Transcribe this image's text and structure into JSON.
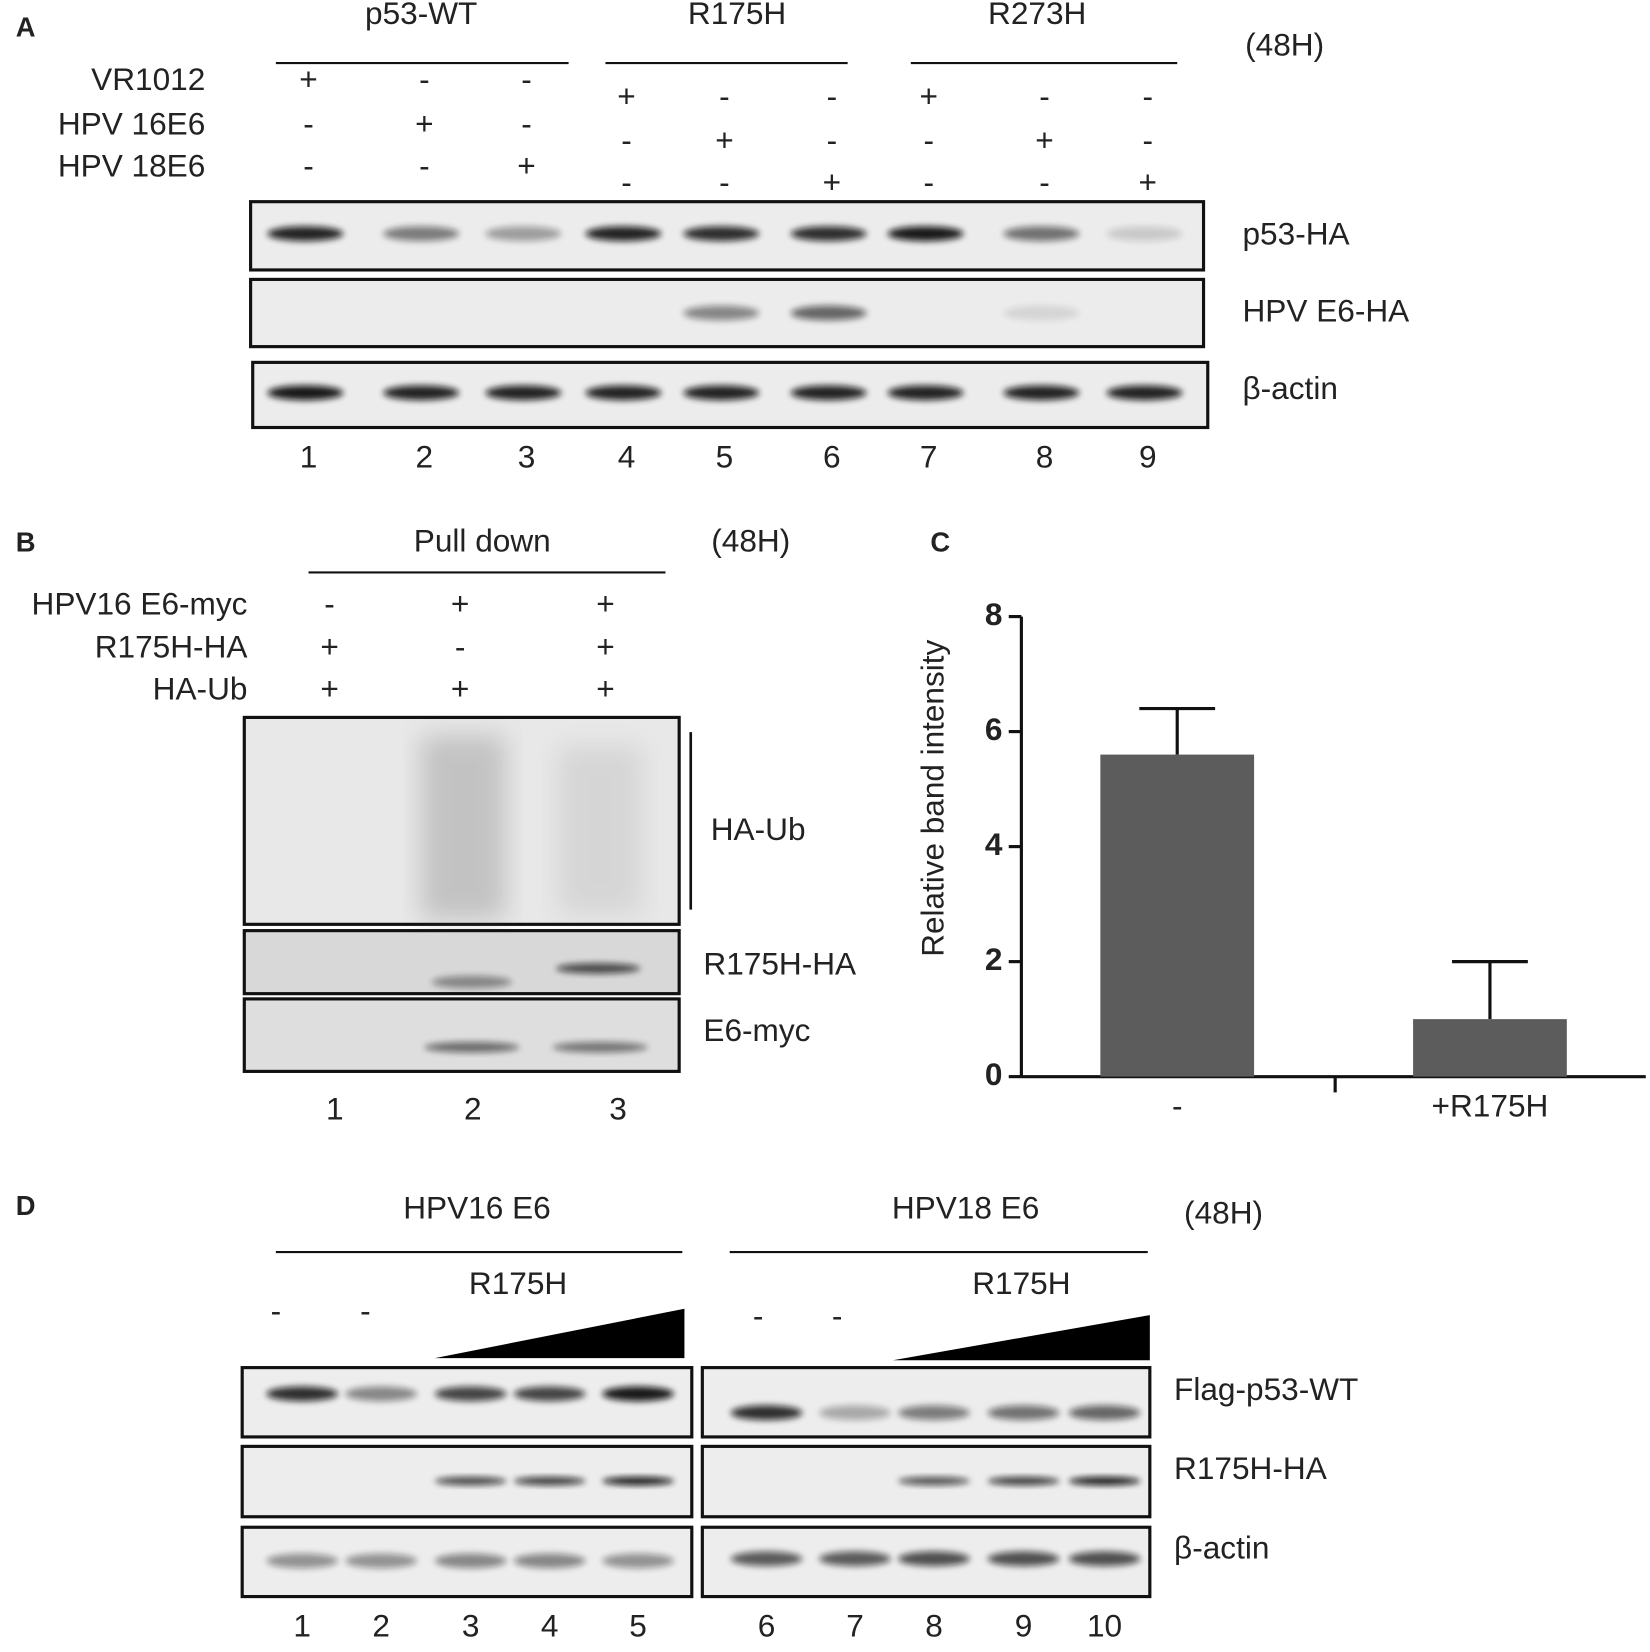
{
  "panel_a": {
    "label": "A",
    "groups": [
      "p53-WT",
      "R175H",
      "R273H"
    ],
    "time": "(48H)",
    "conditions": [
      {
        "name": "VR1012",
        "signs": [
          "+",
          "-",
          "-",
          "+",
          "-",
          "-",
          "+",
          "-",
          "-"
        ]
      },
      {
        "name": "HPV 16E6",
        "signs": [
          "-",
          "+",
          "-",
          "-",
          "+",
          "-",
          "-",
          "+",
          "-"
        ]
      },
      {
        "name": "HPV 18E6",
        "signs": [
          "-",
          "-",
          "+",
          "-",
          "-",
          "+",
          "-",
          "-",
          "+"
        ]
      }
    ],
    "blots": [
      "p53-HA",
      "HPV E6-HA",
      "β-actin"
    ],
    "lanes": [
      1,
      2,
      3,
      4,
      5,
      6,
      7,
      8,
      9
    ]
  },
  "panel_b": {
    "label": "B",
    "header": "Pull down",
    "time": "(48H)",
    "conditions": [
      {
        "name": "HPV16 E6-myc",
        "signs": [
          "-",
          "+",
          "+"
        ]
      },
      {
        "name": "R175H-HA",
        "signs": [
          "+",
          "-",
          "+"
        ]
      },
      {
        "name": "HA-Ub",
        "signs": [
          "+",
          "+",
          "+"
        ]
      }
    ],
    "blots": [
      "HA-Ub",
      "R175H-HA",
      "E6-myc"
    ],
    "lanes": [
      1,
      2,
      3
    ]
  },
  "chart_data": {
    "type": "bar",
    "label": "C",
    "ylabel": "Relative band intensity",
    "categories": [
      "-",
      "+R175H"
    ],
    "values": [
      5.6,
      1.0
    ],
    "errors": [
      0.8,
      1.0
    ],
    "color": "#5c5c5c",
    "ylim": [
      0,
      8
    ],
    "yticks": [
      0,
      2,
      4,
      6,
      8
    ]
  },
  "panel_d": {
    "label": "D",
    "groups": [
      "HPV16 E6",
      "HPV18 E6"
    ],
    "time": "(48H)",
    "gradient_label": "R175H",
    "minus_signs": [
      "-",
      "-",
      "-",
      "-"
    ],
    "blots": [
      "Flag-p53-WT",
      "R175H-HA",
      "β-actin"
    ],
    "lanes": [
      1,
      2,
      3,
      4,
      5,
      6,
      7,
      8,
      9,
      10
    ]
  }
}
